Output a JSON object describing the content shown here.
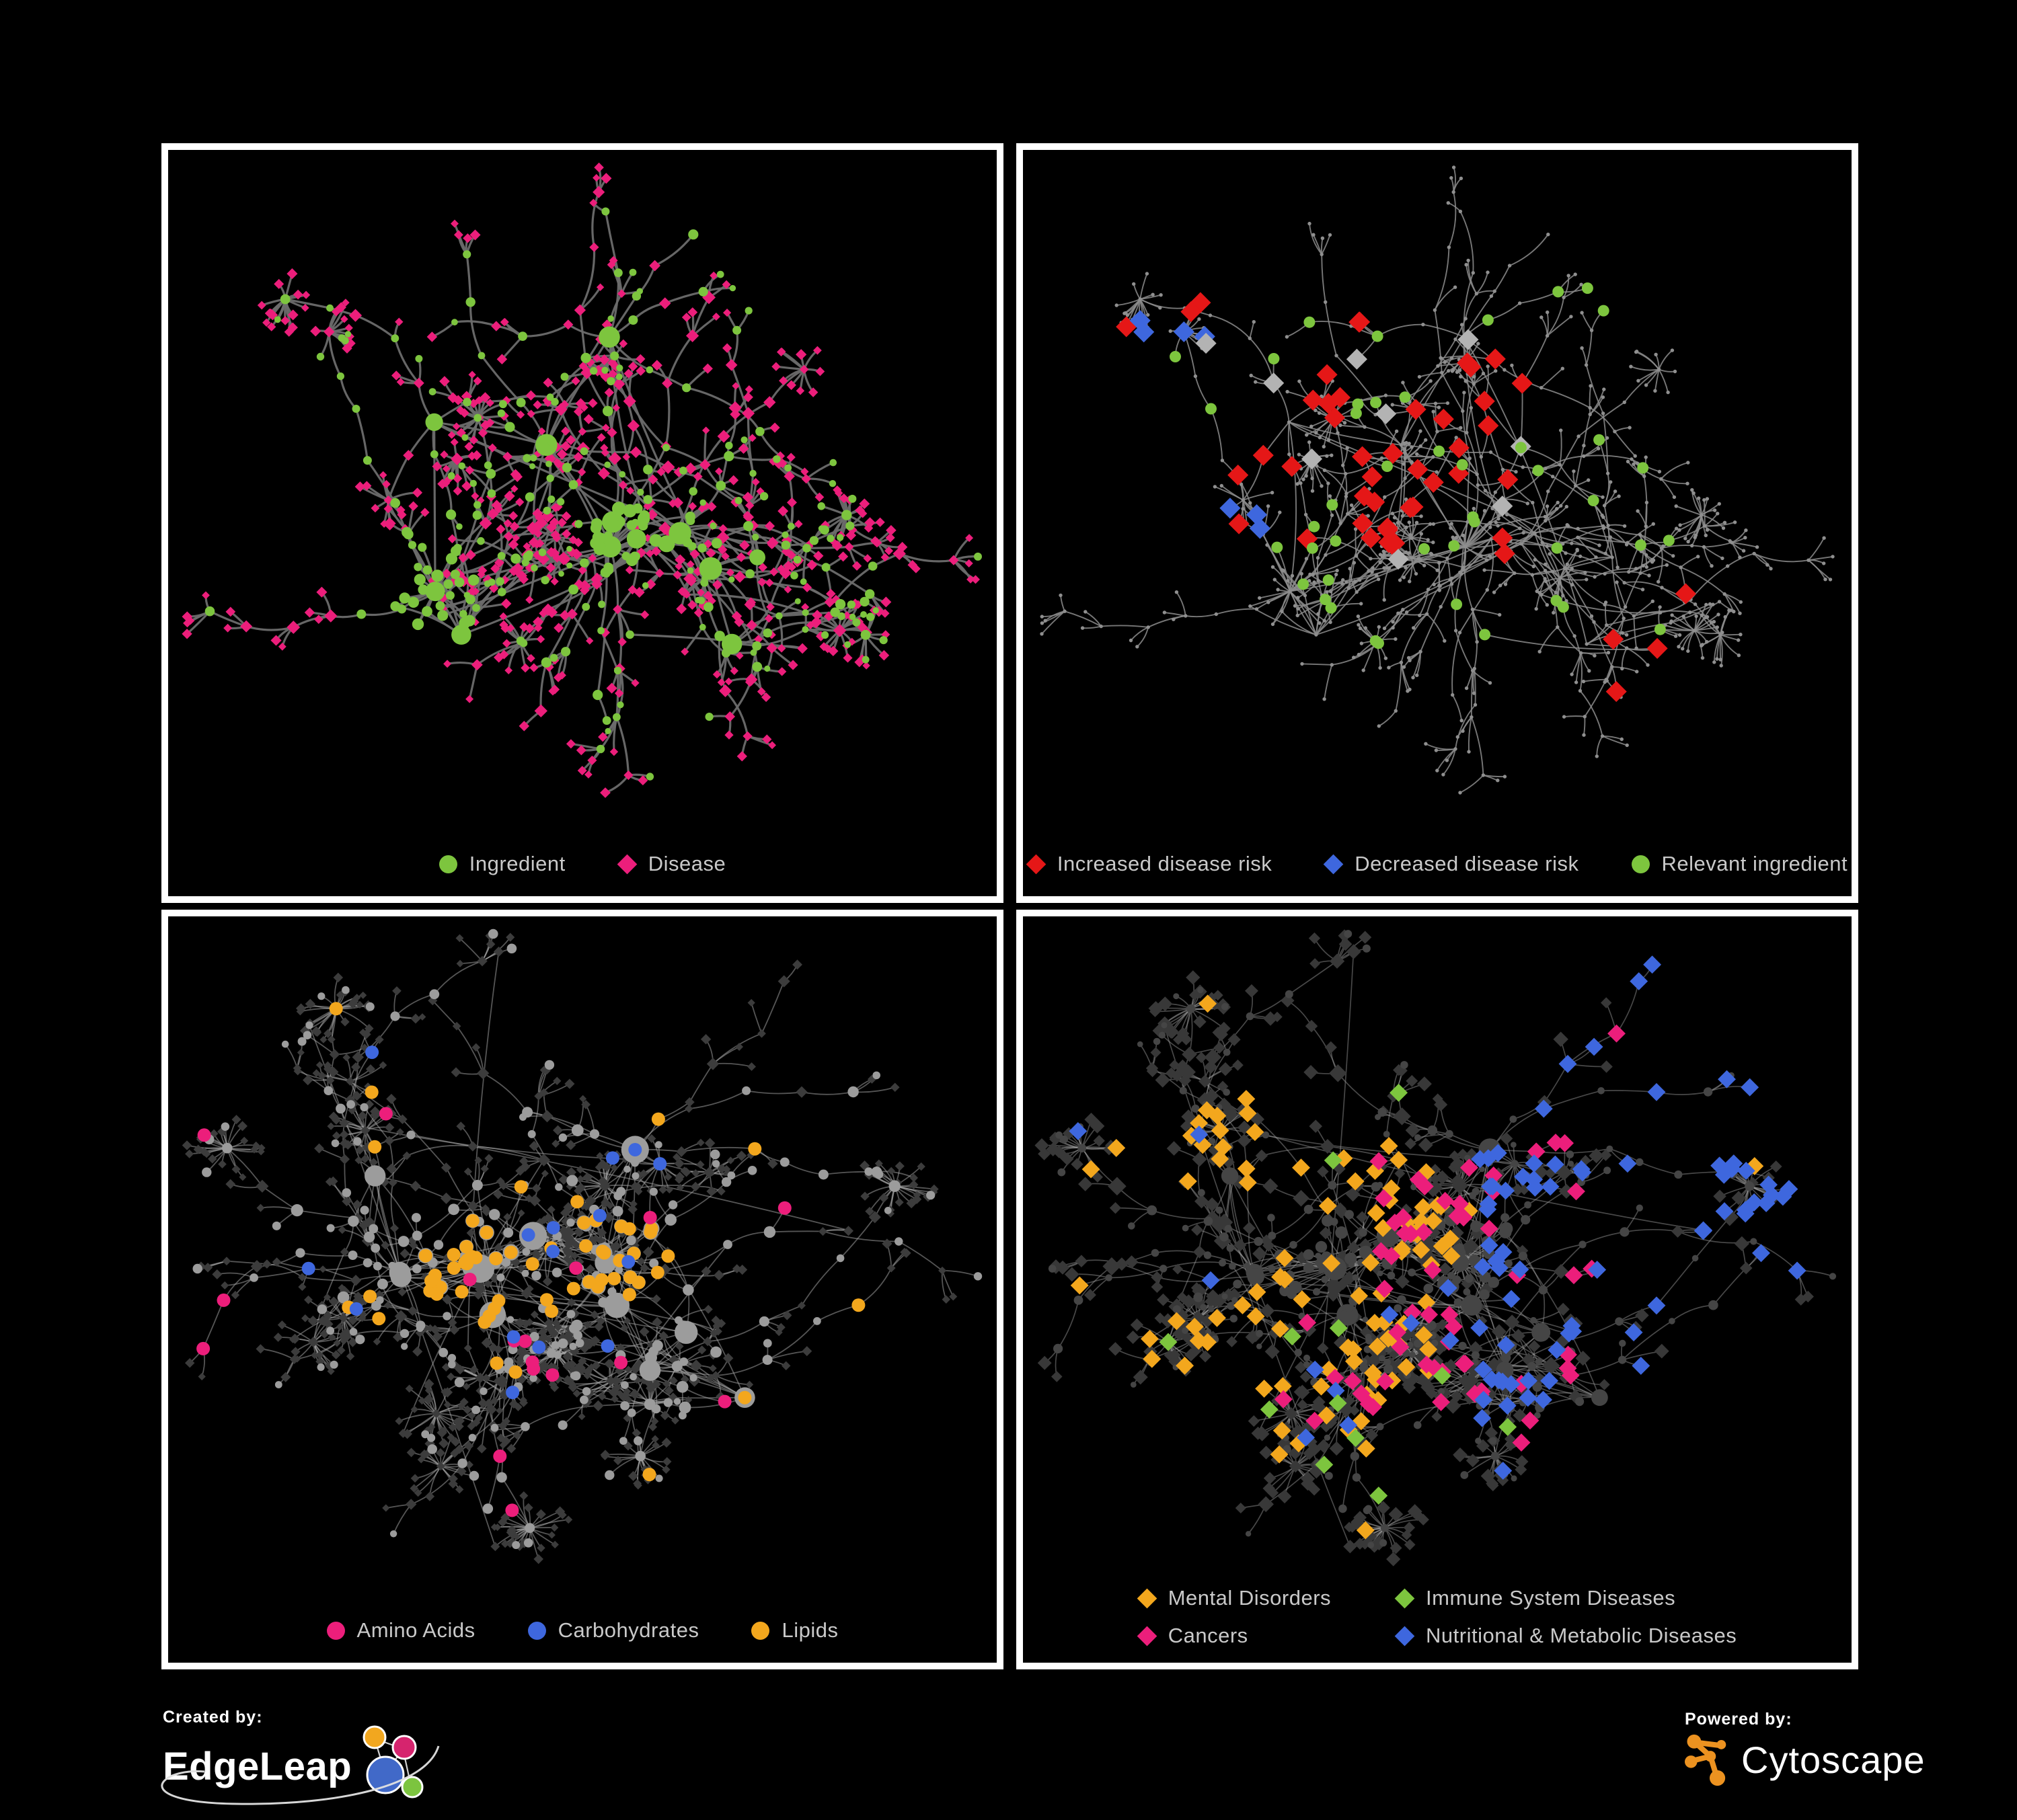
{
  "figure": {
    "background": "#000000",
    "panel_border_color": "#FFFFFF",
    "legend_text_color": "#C9C9C9"
  },
  "footer": {
    "created_by_label": "Created by:",
    "created_by_brand": "EdgeLeap",
    "powered_by_label": "Powered by:",
    "powered_by_brand": "Cytoscape",
    "edgeleap_logo_colors": {
      "orange": "#F2A71F",
      "pink": "#D6246E",
      "blue": "#4169C8",
      "green": "#7CC43F"
    },
    "cytoscape_logo_color": "#EC9220"
  },
  "chart_data": [
    {
      "panel": "top-left",
      "type": "network",
      "description": "Ingredient-disease association network",
      "node_count_approx": 650,
      "edge_count_approx": 700,
      "legend_layout": "row",
      "legend": [
        {
          "label": "Ingredient",
          "shape": "circle",
          "color": "#7DC53E"
        },
        {
          "label": "Disease",
          "shape": "diamond",
          "color": "#EC1E7B"
        }
      ],
      "style": {
        "mode": "category",
        "edge_color": "#6B6B6B",
        "edge_opacity": 0.95,
        "edge_width": 3.2,
        "circle_color": "#7DC53E",
        "diamond_color": "#EC1E7B"
      },
      "highlights": []
    },
    {
      "panel": "top-right",
      "type": "network",
      "description": "Disease-risk overlay on the same network (dimmed)",
      "node_count_approx": 650,
      "edge_count_approx": 700,
      "legend_layout": "row",
      "legend": [
        {
          "label": "Increased disease risk",
          "shape": "diamond",
          "color": "#E51717"
        },
        {
          "label": "Decreased disease risk",
          "shape": "diamond",
          "color": "#3E67DE"
        },
        {
          "label": "Relevant ingredient",
          "shape": "circle",
          "color": "#7DC53E"
        }
      ],
      "style": {
        "mode": "dots",
        "edge_color": "#8C8C8C",
        "edge_opacity": 0.85,
        "edge_width": 1.9,
        "dot_color": "#8F8F8F",
        "dot_radius": 2.7
      },
      "highlights": [
        {
          "label": "Increased disease risk",
          "target": "diamond",
          "color": "#E51717",
          "count": 44,
          "size": 11,
          "region": [
            0.12,
            0.18,
            0.62,
            0.62
          ]
        },
        {
          "label": "Increased disease risk outliers",
          "target": "diamond",
          "color": "#E51717",
          "count": 4,
          "size": 11,
          "region": [
            0.58,
            0.66,
            0.85,
            0.85
          ]
        },
        {
          "label": "Decreased disease risk",
          "target": "diamond",
          "color": "#3E67DE",
          "count": 7,
          "size": 11,
          "region": [
            0.08,
            0.25,
            0.3,
            0.58
          ]
        },
        {
          "label": "Decreased disease risk right pair",
          "target": "diamond",
          "color": "#3E67DE",
          "count": 2,
          "size": 11,
          "region": [
            0.8,
            0.12,
            0.98,
            0.22
          ]
        },
        {
          "label": "Neutral association",
          "target": "diamond",
          "color": "#B3B3B3",
          "count": 9,
          "size": 11,
          "region": [
            0.1,
            0.2,
            0.65,
            0.62
          ]
        },
        {
          "label": "Relevant ingredient",
          "target": "circle",
          "color": "#7DC53E",
          "count": 44,
          "size": 8.5,
          "region": [
            0.1,
            0.18,
            0.78,
            0.74
          ]
        }
      ]
    },
    {
      "panel": "bottom-left",
      "type": "network",
      "description": "Nutrient-class overlay: ingredients colored by chemical class",
      "node_count_approx": 650,
      "edge_count_approx": 700,
      "legend_layout": "row",
      "legend": [
        {
          "label": "Amino Acids",
          "shape": "circle",
          "color": "#EC1E7B"
        },
        {
          "label": "Carbohydrates",
          "shape": "circle",
          "color": "#3E67DE"
        },
        {
          "label": "Lipids",
          "shape": "circle",
          "color": "#F3A71D"
        }
      ],
      "style": {
        "mode": "gray",
        "edge_color": "#A9A9A9",
        "edge_opacity": 0.5,
        "edge_width": 1.8,
        "circle_color": "#9C9C9C",
        "diamond_color": "#3C3C3C"
      },
      "highlights": [
        {
          "label": "Lipids cluster",
          "target": "circle",
          "color": "#F3A71D",
          "count": 55,
          "size": 10,
          "role": "blob"
        },
        {
          "label": "Lipids scattered",
          "target": "circle",
          "color": "#F3A71D",
          "count": 20,
          "size": 10,
          "region": [
            0.05,
            0.1,
            0.9,
            0.9
          ]
        },
        {
          "label": "Amino Acids",
          "target": "circle",
          "color": "#EC1E7B",
          "count": 17,
          "size": 10,
          "region": [
            0.02,
            0.05,
            0.97,
            0.97
          ]
        },
        {
          "label": "Carbohydrates",
          "target": "circle",
          "color": "#3E67DE",
          "count": 11,
          "size": 10,
          "hub_rank": 5,
          "radius": 280
        },
        {
          "label": "Carbohydrates scattered",
          "target": "circle",
          "color": "#3E67DE",
          "count": 4,
          "size": 10,
          "region": [
            0.0,
            0.1,
            1,
            0.85
          ]
        }
      ]
    },
    {
      "panel": "bottom-right",
      "type": "network",
      "description": "Disease-class overlay: diseases colored by MeSH class",
      "node_count_approx": 650,
      "edge_count_approx": 700,
      "legend_layout": "grid",
      "legend": [
        {
          "label": "Mental Disorders",
          "shape": "diamond",
          "color": "#F3A71D"
        },
        {
          "label": "Immune System Diseases",
          "shape": "diamond",
          "color": "#7DC53E"
        },
        {
          "label": "Cancers",
          "shape": "diamond",
          "color": "#EC1E7B"
        },
        {
          "label": "Nutritional & Metabolic Diseases",
          "shape": "diamond",
          "color": "#3E67DE"
        }
      ],
      "style": {
        "mode": "dim",
        "edge_color": "#9F9F9F",
        "edge_opacity": 0.45,
        "edge_width": 1.7,
        "circle_color": "#454545",
        "diamond_color": "#383838"
      },
      "highlights": [
        {
          "label": "Mental Disorders cluster",
          "target": "diamond",
          "color": "#F3A71D",
          "count": 88,
          "size": 9.5,
          "hub_rank": 1,
          "radius": 300
        },
        {
          "label": "Mental Disorders scattered",
          "target": "diamond",
          "color": "#F3A71D",
          "count": 12,
          "size": 9.5,
          "region": [
            0.05,
            0.03,
            0.9,
            0.92
          ]
        },
        {
          "label": "Cancers cluster",
          "target": "diamond",
          "color": "#EC1E7B",
          "count": 52,
          "size": 9.5,
          "hub_rank": 6,
          "radius": 260
        },
        {
          "label": "Cancers scattered",
          "target": "diamond",
          "color": "#EC1E7B",
          "count": 8,
          "size": 9.5,
          "region": [
            0.3,
            0.05,
            0.96,
            0.96
          ]
        },
        {
          "label": "Nutritional & Metabolic Diseases",
          "target": "diamond",
          "color": "#3E67DE",
          "count": 70,
          "size": 9.5,
          "region": [
            0.55,
            0.03,
            0.99,
            0.75
          ]
        },
        {
          "label": "Nutritional & Metabolic scattered",
          "target": "diamond",
          "color": "#3E67DE",
          "count": 14,
          "size": 9.5,
          "region": [
            0.03,
            0.03,
            0.97,
            0.97
          ]
        },
        {
          "label": "Immune System Diseases",
          "target": "diamond",
          "color": "#7DC53E",
          "count": 12,
          "size": 9.5,
          "region": [
            0.08,
            0.05,
            0.92,
            0.95
          ]
        }
      ]
    }
  ]
}
